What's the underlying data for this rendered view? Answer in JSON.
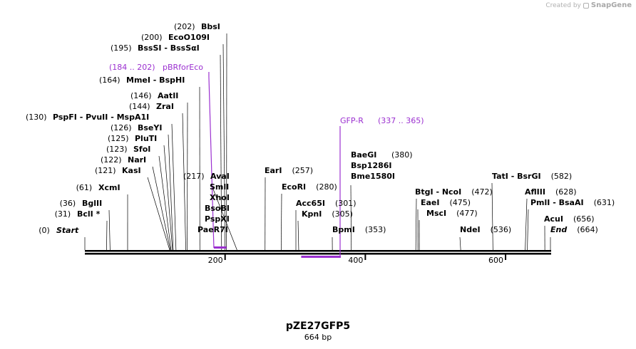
{
  "credit": {
    "prefix": "Created by",
    "brand": "SnapGene",
    "logo_icon": "snapgene-logo-icon"
  },
  "sequence": {
    "name": "pZE27GFP5",
    "length_label": "664 bp",
    "length": 664
  },
  "colors": {
    "feature": "#9b30d0",
    "line": "#000000"
  },
  "ticks": [
    {
      "value": 200,
      "label": "200"
    },
    {
      "value": 400,
      "label": "400"
    },
    {
      "value": 600,
      "label": "600"
    }
  ],
  "sites": [
    {
      "pos": "(0)",
      "name": "Start",
      "bp": 0,
      "style": "italic-bold"
    },
    {
      "pos": "(31)",
      "name": "BclI *",
      "bp": 31
    },
    {
      "pos": "(36)",
      "name": "BglII",
      "bp": 36
    },
    {
      "pos": "(61)",
      "name": "XcmI",
      "bp": 61
    },
    {
      "pos": "(121)",
      "name": "KasI",
      "bp": 121
    },
    {
      "pos": "(122)",
      "name": "NarI",
      "bp": 122
    },
    {
      "pos": "(123)",
      "name": "SfoI",
      "bp": 123
    },
    {
      "pos": "(125)",
      "name": "PluTI",
      "bp": 125
    },
    {
      "pos": "(126)",
      "name": "BseYI",
      "bp": 126
    },
    {
      "pos": "(130)",
      "name": "PspFI  - PvuII  - MspA1I",
      "bp": 130
    },
    {
      "pos": "(144)",
      "name": "ZraI",
      "bp": 144
    },
    {
      "pos": "(146)",
      "name": "AatII",
      "bp": 146
    },
    {
      "pos": "(164)",
      "name": "MmeI  - BspHI",
      "bp": 164
    },
    {
      "pos": "(195)",
      "name": "BssSI  - BssSαI",
      "bp": 195
    },
    {
      "pos": "(200)",
      "name": "EcoO109I",
      "bp": 200
    },
    {
      "pos": "(202)",
      "name": "BbsI",
      "bp": 202
    },
    {
      "pos": "(217)",
      "name": "AvaI",
      "bp": 217,
      "stack": [
        "SmlI",
        "XhoI",
        "BsoBI",
        "PspXI",
        "PaeR7I"
      ]
    },
    {
      "pos": "(257)",
      "name": "EarI",
      "bp": 257
    },
    {
      "pos": "(280)",
      "name": "EcoRI",
      "bp": 280
    },
    {
      "pos": "(301)",
      "name": "Acc65I",
      "bp": 301
    },
    {
      "pos": "(305)",
      "name": "KpnI",
      "bp": 305
    },
    {
      "pos": "(353)",
      "name": "BpmI",
      "bp": 353
    },
    {
      "pos": "(380)",
      "name": "BaeGI",
      "bp": 380,
      "stack": [
        "Bsp1286I",
        "Bme1580I"
      ]
    },
    {
      "pos": "(472)",
      "name": "BtgI  - NcoI",
      "bp": 472
    },
    {
      "pos": "(475)",
      "name": "EaeI",
      "bp": 475
    },
    {
      "pos": "(477)",
      "name": "MscI",
      "bp": 477
    },
    {
      "pos": "(536)",
      "name": "NdeI",
      "bp": 536
    },
    {
      "pos": "(582)",
      "name": "TatI  - BsrGI",
      "bp": 582
    },
    {
      "pos": "(628)",
      "name": "AflIII",
      "bp": 628
    },
    {
      "pos": "(631)",
      "name": "PmlI  - BsaAI",
      "bp": 631
    },
    {
      "pos": "(656)",
      "name": "AcuI",
      "bp": 656
    },
    {
      "pos": "(664)",
      "name": "End",
      "bp": 664,
      "style": "italic-bold"
    }
  ],
  "features": [
    {
      "name": "pBRforEco",
      "range": "(184 .. 202)",
      "start": 184,
      "end": 202,
      "strand": "top"
    },
    {
      "name": "GFP-R",
      "range": "(337 .. 365)",
      "start": 337,
      "end": 365,
      "strand": "bottom"
    }
  ]
}
